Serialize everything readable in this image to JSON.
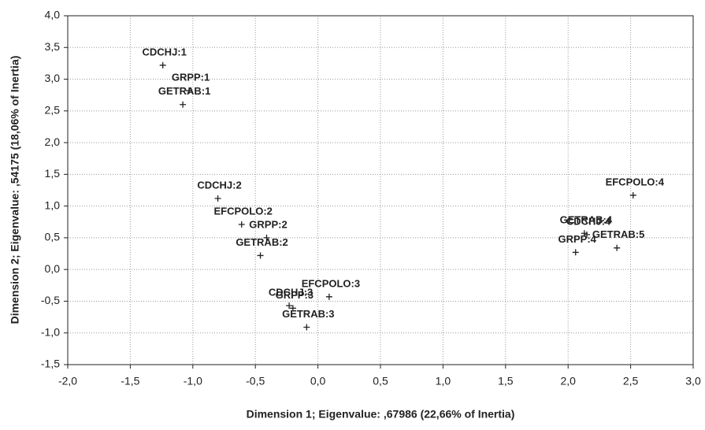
{
  "chart_data": {
    "type": "scatter",
    "xlabel": "Dimension 1; Eigenvalue: ,67986 (22,66% of Inertia)",
    "ylabel": "Dimension 2; Eigenvalue: ,54175 (18,06% of Inertia)",
    "point_labels": [
      "CDCHJ:1",
      "GRPP:1",
      "GETRAB:1",
      "CDCHJ:2",
      "EFCPOLO:2",
      "GRPP:2",
      "GETRAB:2",
      "EFCPOLO:3",
      "CDCHJ:3",
      "GRPP:3",
      "GETRAB:3",
      "EFCPOLO:4",
      "GETRAB:4",
      "CDCHJ:4",
      "GRPP:4",
      "GETRAB:5"
    ],
    "x": [
      -1.24,
      -1.03,
      -1.08,
      -0.8,
      -0.61,
      -0.41,
      -0.46,
      0.09,
      -0.23,
      -0.2,
      -0.09,
      2.52,
      2.13,
      2.15,
      2.06,
      2.39
    ],
    "values": [
      3.22,
      2.82,
      2.6,
      1.12,
      0.71,
      0.5,
      0.22,
      -0.43,
      -0.57,
      -0.61,
      -0.91,
      1.17,
      0.57,
      0.55,
      0.27,
      0.34
    ],
    "color": "#222222",
    "xlim": [
      -2.0,
      3.0
    ],
    "ylim": [
      -1.5,
      4.0
    ],
    "xticks": [
      {
        "value": -2.0,
        "label": "-2,0"
      },
      {
        "value": -1.5,
        "label": "-1,5"
      },
      {
        "value": -1.0,
        "label": "-1,0"
      },
      {
        "value": -0.5,
        "label": "-0,5"
      },
      {
        "value": 0.0,
        "label": "0,0"
      },
      {
        "value": 0.5,
        "label": "0,5"
      },
      {
        "value": 1.0,
        "label": "1,0"
      },
      {
        "value": 1.5,
        "label": "1,5"
      },
      {
        "value": 2.0,
        "label": "2,0"
      },
      {
        "value": 2.5,
        "label": "2,5"
      },
      {
        "value": 3.0,
        "label": "3,0"
      }
    ],
    "yticks": [
      {
        "value": -1.5,
        "label": "-1,5"
      },
      {
        "value": -1.0,
        "label": "-1,0"
      },
      {
        "value": -0.5,
        "label": "-0,5"
      },
      {
        "value": 0.0,
        "label": "0,0"
      },
      {
        "value": 0.5,
        "label": "0,5"
      },
      {
        "value": 1.0,
        "label": "1,0"
      },
      {
        "value": 1.5,
        "label": "1,5"
      },
      {
        "value": 2.0,
        "label": "2,0"
      },
      {
        "value": 2.5,
        "label": "2,5"
      },
      {
        "value": 3.0,
        "label": "3,0"
      },
      {
        "value": 3.5,
        "label": "3,5"
      },
      {
        "value": 4.0,
        "label": "4,0"
      }
    ],
    "grid": true
  }
}
